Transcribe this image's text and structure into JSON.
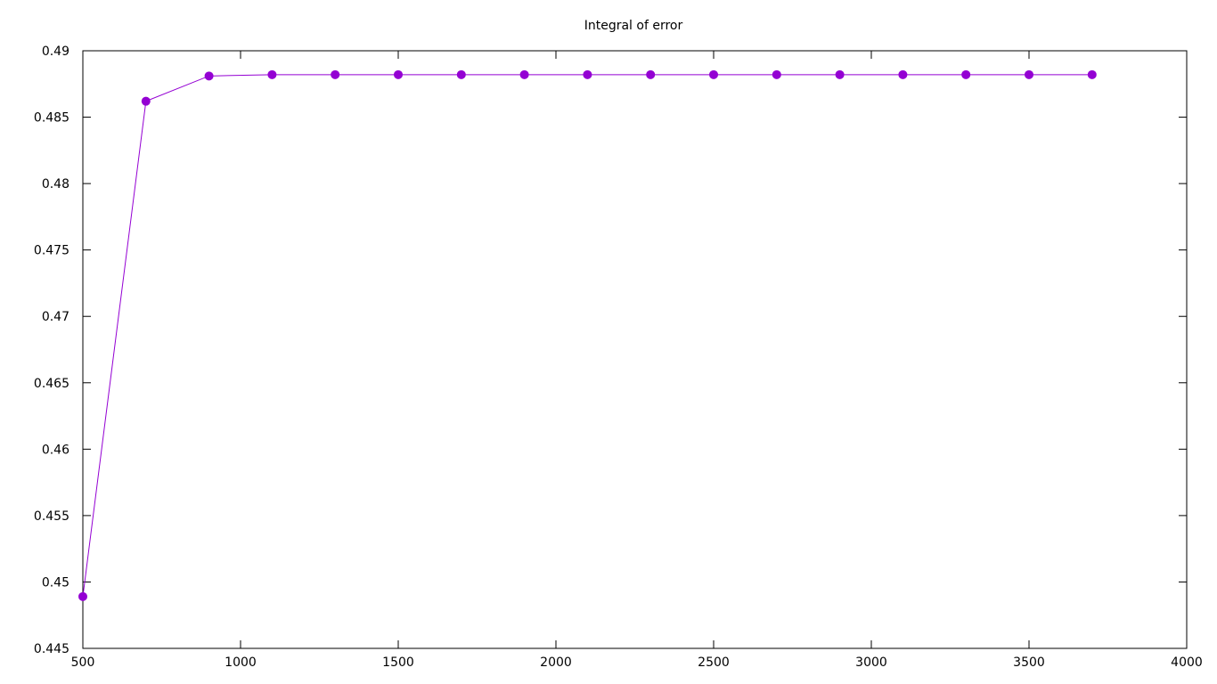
{
  "chart_data": {
    "type": "line",
    "title": "Integral of error",
    "xlabel": "",
    "ylabel": "",
    "xlim": [
      500,
      4000
    ],
    "ylim": [
      0.445,
      0.49
    ],
    "x_ticks": [
      500,
      1000,
      1500,
      2000,
      2500,
      3000,
      3500,
      4000
    ],
    "x_tick_labels": [
      "500",
      "1000",
      "1500",
      "2000",
      "2500",
      "3000",
      "3500",
      "4000"
    ],
    "y_ticks": [
      0.445,
      0.45,
      0.455,
      0.46,
      0.465,
      0.47,
      0.475,
      0.48,
      0.485,
      0.49
    ],
    "y_tick_labels": [
      "0.445",
      "0.45",
      "0.455",
      "0.46",
      "0.465",
      "0.47",
      "0.475",
      "0.48",
      "0.485",
      "0.49"
    ],
    "grid": false,
    "legend": "none",
    "series": [
      {
        "color": "#9400d3",
        "marker": "circle",
        "x": [
          500,
          700,
          900,
          1100,
          1300,
          1500,
          1700,
          1900,
          2100,
          2300,
          2500,
          2700,
          2900,
          3100,
          3300,
          3500,
          3700
        ],
        "y": [
          0.4489,
          0.4862,
          0.4881,
          0.4882,
          0.4882,
          0.4882,
          0.4882,
          0.4882,
          0.4882,
          0.4882,
          0.4882,
          0.4882,
          0.4882,
          0.4882,
          0.4882,
          0.4882,
          0.4882
        ]
      }
    ]
  }
}
